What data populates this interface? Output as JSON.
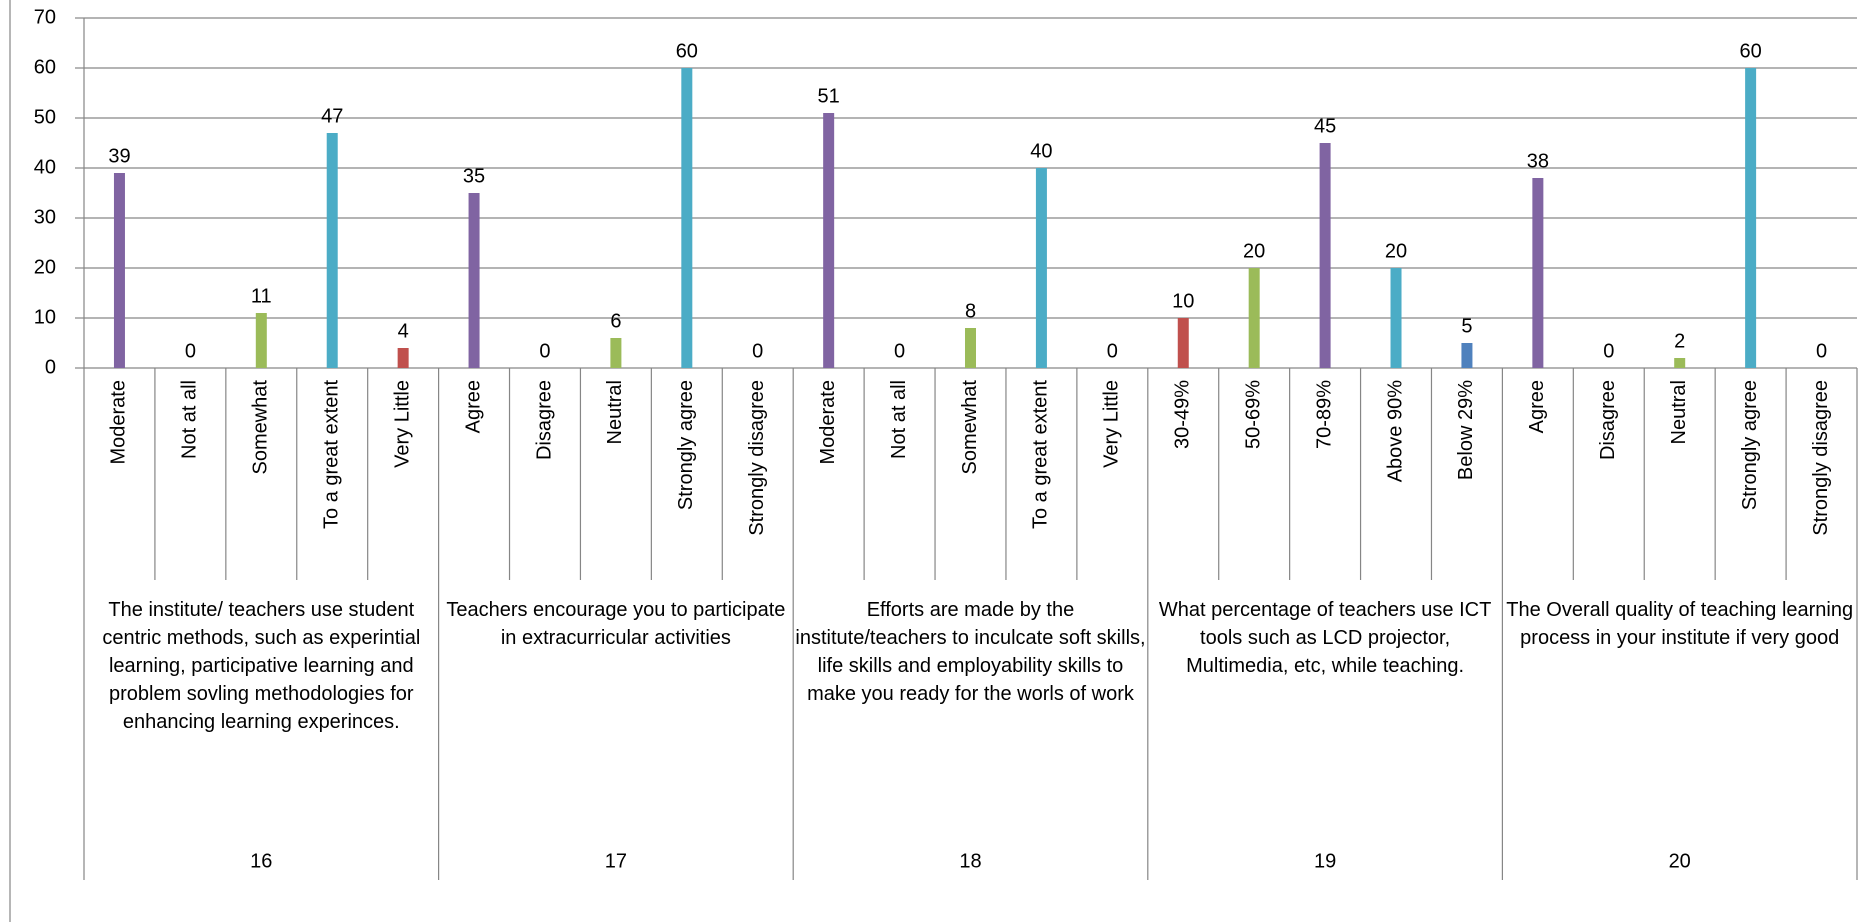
{
  "chart_data": {
    "type": "bar",
    "categories": [
      "Moderate",
      "Not at all",
      "Somewhat",
      "To a great extent",
      "Very Little",
      "Agree",
      "Disagree",
      "Neutral",
      "Strongly agree",
      "Strongly disagree",
      "Moderate",
      "Not at all",
      "Somewhat",
      "To a great extent",
      "Very Little",
      "30-49%",
      "50-69%",
      "70-89%",
      "Above 90%",
      "Below 29%",
      "Agree",
      "Disagree",
      "Neutral",
      "Strongly agree",
      "Strongly disagree"
    ],
    "values": [
      39,
      0,
      11,
      47,
      4,
      35,
      0,
      6,
      60,
      0,
      51,
      0,
      8,
      40,
      0,
      10,
      20,
      45,
      20,
      5,
      38,
      0,
      2,
      60,
      0
    ],
    "colors": [
      "#8064a2",
      "#c0504d",
      "#9bbb59",
      "#4bacc6",
      "#c0504d",
      "#8064a2",
      "#c0504d",
      "#9bbb59",
      "#4bacc6",
      "#4f81bd",
      "#8064a2",
      "#c0504d",
      "#9bbb59",
      "#4bacc6",
      "#c0504d",
      "#c0504d",
      "#9bbb59",
      "#8064a2",
      "#4bacc6",
      "#4f81bd",
      "#8064a2",
      "#c0504d",
      "#9bbb59",
      "#4bacc6",
      "#4f81bd"
    ],
    "groups": [
      {
        "name": "The institute/ teachers use student centric methods, such as experintial learning, participative learning and problem sovling methodologies for enhancing learning experinces.",
        "id": "16"
      },
      {
        "name": "Teachers encourage you to participate in extracurricular activities",
        "id": "17"
      },
      {
        "name": "Efforts are made by the institute/teachers to inculcate soft skills, life skills and employability skills to make you ready for the worls of work",
        "id": "18"
      },
      {
        "name": "What percentage of teachers use ICT tools such as LCD projector, Multimedia, etc, while teaching.",
        "id": "19"
      },
      {
        "name": "The Overall quality of teaching learning process in your institute if very good",
        "id": "20"
      }
    ],
    "group_size": 5,
    "ylim": [
      0,
      70
    ],
    "yticks": [
      0,
      10,
      20,
      30,
      40,
      50,
      60,
      70
    ],
    "grid": true
  }
}
